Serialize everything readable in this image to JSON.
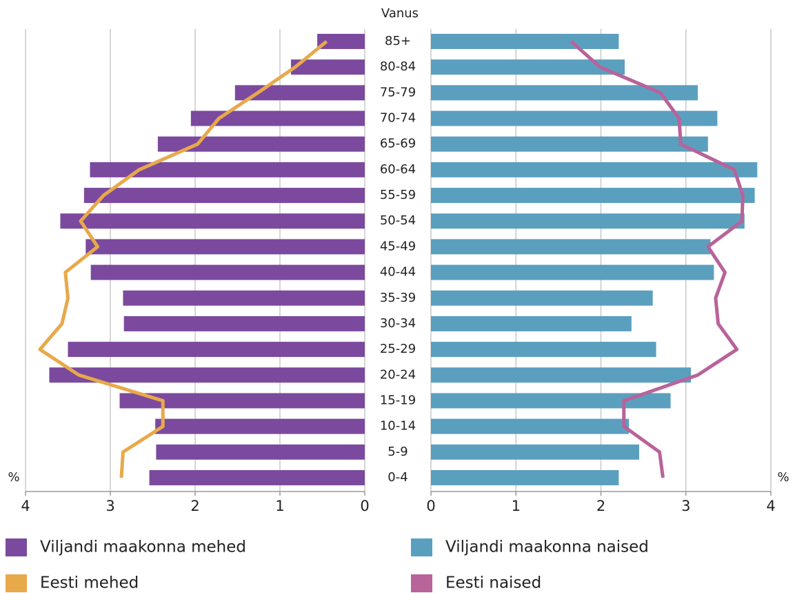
{
  "chart_data": {
    "type": "pyramid",
    "category_axis_title": "Vanus",
    "axis_label": "%",
    "categories": [
      "85+",
      "80-84",
      "75-79",
      "70-74",
      "65-69",
      "60-64",
      "55-59",
      "50-54",
      "45-49",
      "40-44",
      "35-39",
      "30-34",
      "25-29",
      "20-24",
      "15-19",
      "10-14",
      "5-9",
      "0-4"
    ],
    "xlim": [
      0,
      4
    ],
    "xticks": [
      0,
      1,
      2,
      3,
      4
    ],
    "grid": true,
    "series": [
      {
        "name": "Viljandi maakonna mehed",
        "color": "#7b4a9e",
        "side": "left",
        "kind": "bar",
        "values": [
          0.56,
          0.87,
          1.53,
          2.05,
          2.44,
          3.24,
          3.31,
          3.59,
          3.29,
          3.23,
          2.85,
          2.84,
          3.5,
          3.72,
          2.89,
          2.47,
          2.46,
          2.54
        ]
      },
      {
        "name": "Viljandi maakonna naised",
        "color": "#5b9fbf",
        "side": "right",
        "kind": "bar",
        "values": [
          2.21,
          2.28,
          3.14,
          3.37,
          3.26,
          3.84,
          3.81,
          3.69,
          3.29,
          3.33,
          2.61,
          2.36,
          2.65,
          3.06,
          2.82,
          2.33,
          2.45,
          2.21
        ]
      },
      {
        "name": "Eesti mehed",
        "color": "#e8a94a",
        "side": "left",
        "kind": "line",
        "values": [
          0.45,
          0.82,
          1.26,
          1.72,
          1.97,
          2.66,
          3.08,
          3.35,
          3.15,
          3.53,
          3.5,
          3.57,
          3.83,
          3.37,
          2.38,
          2.38,
          2.85,
          2.87
        ]
      },
      {
        "name": "Eesti naised",
        "color": "#b8639a",
        "side": "right",
        "kind": "line",
        "values": [
          1.65,
          1.99,
          2.7,
          2.92,
          2.94,
          3.57,
          3.67,
          3.66,
          3.26,
          3.46,
          3.35,
          3.38,
          3.6,
          3.14,
          2.27,
          2.27,
          2.69,
          2.73
        ]
      }
    ]
  }
}
